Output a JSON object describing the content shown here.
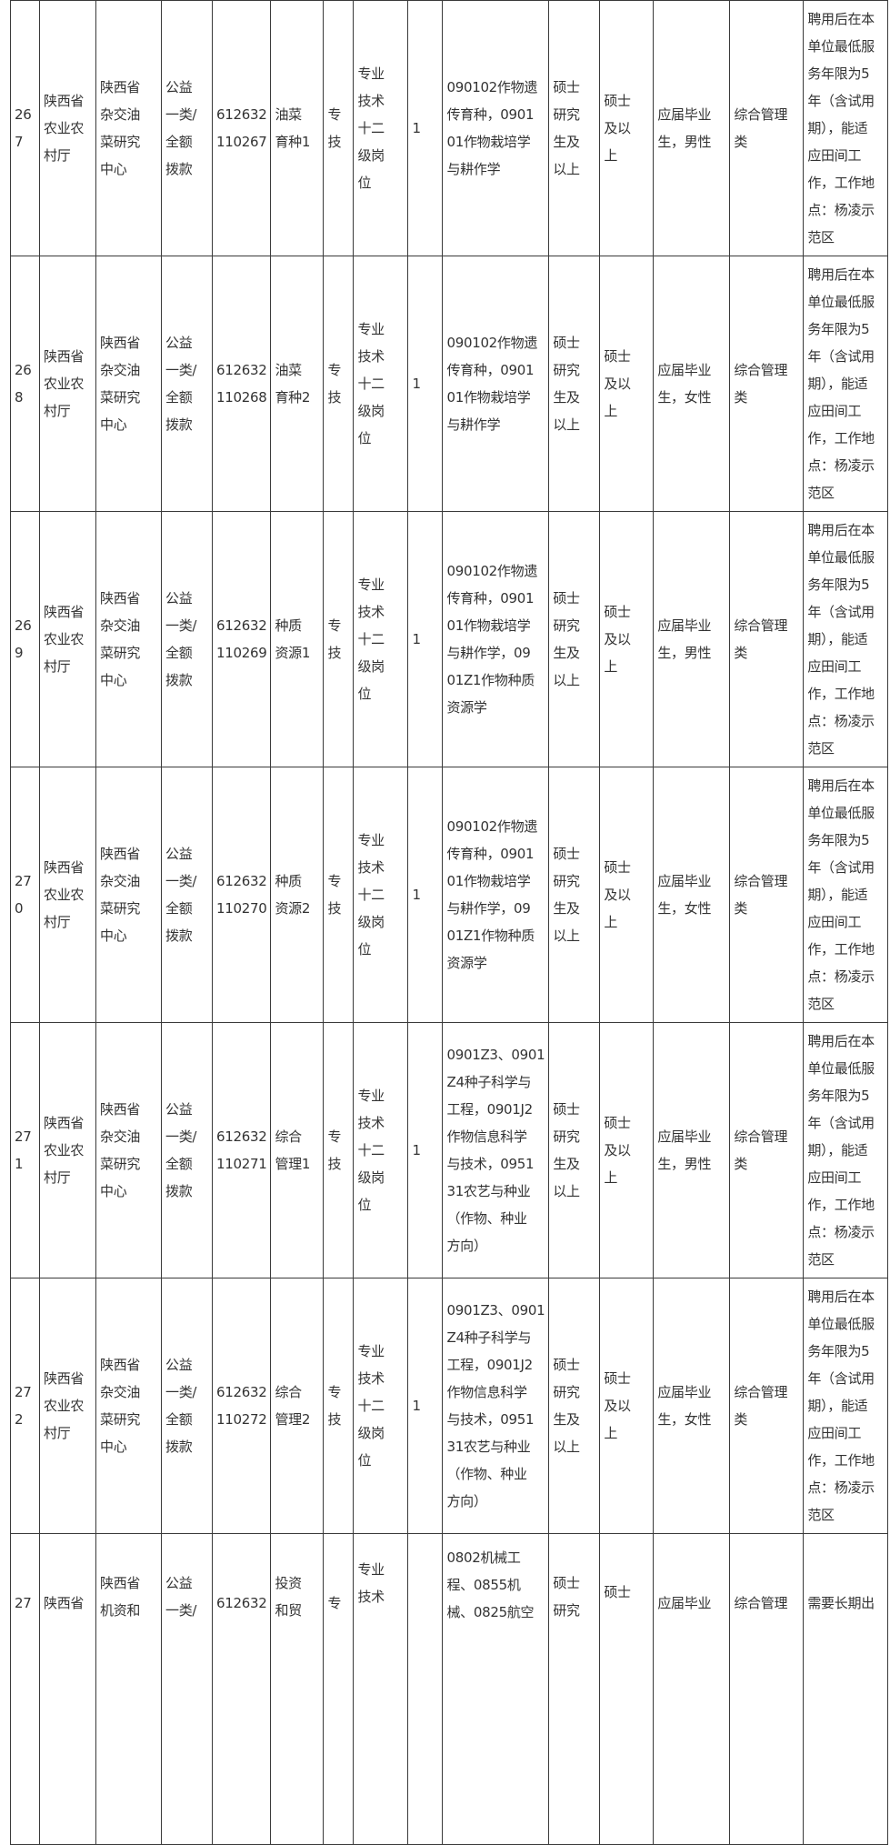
{
  "table": {
    "rows": [
      {
        "cells": [
          "26\n7",
          "陕西省\n农业农\n村厅",
          "陕西省\n杂交油\n菜研究\n中心",
          "公益\n一类/\n全额\n拨款",
          "612632\n110267",
          "油菜\n育种1",
          "专\n技",
          "专业\n技术\n十二\n级岗\n位",
          "1",
          "090102作物遗\n传育种，0901\n01作物栽培学\n与耕作学",
          "硕士\n研究\n生及\n以上",
          "硕士\n及以\n上",
          "应届毕业\n生，男性",
          "综合管理\n类",
          "聘用后在本\n单位最低服\n务年限为5\n年（含试用\n期），能适\n应田间工\n作，工作地\n点：杨凌示\n范区"
        ]
      },
      {
        "cells": [
          "26\n8",
          "陕西省\n农业农\n村厅",
          "陕西省\n杂交油\n菜研究\n中心",
          "公益\n一类/\n全额\n拨款",
          "612632\n110268",
          "油菜\n育种2",
          "专\n技",
          "专业\n技术\n十二\n级岗\n位",
          "1",
          "090102作物遗\n传育种，0901\n01作物栽培学\n与耕作学",
          "硕士\n研究\n生及\n以上",
          "硕士\n及以\n上",
          "应届毕业\n生，女性",
          "综合管理\n类",
          "聘用后在本\n单位最低服\n务年限为5\n年（含试用\n期），能适\n应田间工\n作，工作地\n点：杨凌示\n范区"
        ]
      },
      {
        "cells": [
          "26\n9",
          "陕西省\n农业农\n村厅",
          "陕西省\n杂交油\n菜研究\n中心",
          "公益\n一类/\n全额\n拨款",
          "612632\n110269",
          "种质\n资源1",
          "专\n技",
          "专业\n技术\n十二\n级岗\n位",
          "1",
          "090102作物遗\n传育种，0901\n01作物栽培学\n与耕作学，09\n01Z1作物种质\n资源学",
          "硕士\n研究\n生及\n以上",
          "硕士\n及以\n上",
          "应届毕业\n生，男性",
          "综合管理\n类",
          "聘用后在本\n单位最低服\n务年限为5\n年（含试用\n期），能适\n应田间工\n作，工作地\n点：杨凌示\n范区"
        ]
      },
      {
        "cells": [
          "27\n0",
          "陕西省\n农业农\n村厅",
          "陕西省\n杂交油\n菜研究\n中心",
          "公益\n一类/\n全额\n拨款",
          "612632\n110270",
          "种质\n资源2",
          "专\n技",
          "专业\n技术\n十二\n级岗\n位",
          "1",
          "090102作物遗\n传育种，0901\n01作物栽培学\n与耕作学，09\n01Z1作物种质\n资源学",
          "硕士\n研究\n生及\n以上",
          "硕士\n及以\n上",
          "应届毕业\n生，女性",
          "综合管理\n类",
          "聘用后在本\n单位最低服\n务年限为5\n年（含试用\n期），能适\n应田间工\n作，工作地\n点：杨凌示\n范区"
        ]
      },
      {
        "cells": [
          "27\n1",
          "陕西省\n农业农\n村厅",
          "陕西省\n杂交油\n菜研究\n中心",
          "公益\n一类/\n全额\n拨款",
          "612632\n110271",
          "综合\n管理1",
          "专\n技",
          "专业\n技术\n十二\n级岗\n位",
          "1",
          "0901Z3、0901\nZ4种子科学与\n工程，0901J2\n作物信息科学\n与技术，0951\n31农艺与种业\n（作物、种业\n方向）",
          "硕士\n研究\n生及\n以上",
          "硕士\n及以\n上",
          "应届毕业\n生，男性",
          "综合管理\n类",
          "聘用后在本\n单位最低服\n务年限为5\n年（含试用\n期），能适\n应田间工\n作，工作地\n点：杨凌示\n范区"
        ]
      },
      {
        "cells": [
          "27\n2",
          "陕西省\n农业农\n村厅",
          "陕西省\n杂交油\n菜研究\n中心",
          "公益\n一类/\n全额\n拨款",
          "612632\n110272",
          "综合\n管理2",
          "专\n技",
          "专业\n技术\n十二\n级岗\n位",
          "1",
          "0901Z3、0901\nZ4种子科学与\n工程，0901J2\n作物信息科学\n与技术，0951\n31农艺与种业\n（作物、种业\n方向）",
          "硕士\n研究\n生及\n以上",
          "硕士\n及以\n上",
          "应届毕业\n生，女性",
          "综合管理\n类",
          "聘用后在本\n单位最低服\n务年限为5\n年（含试用\n期），能适\n应田间工\n作，工作地\n点：杨凌示\n范区"
        ]
      }
    ],
    "partial_row": {
      "cells": [
        "27",
        "陕西省",
        "陕西省\n机资和",
        "公益\n一类/",
        "612632",
        "投资\n和贸",
        "专",
        "专业\n技术",
        "",
        "0802机械工\n程、0855机\n械、0825航空",
        "硕士\n研究",
        "硕士",
        "应届毕业",
        "综合管理",
        "需要长期出"
      ]
    }
  }
}
